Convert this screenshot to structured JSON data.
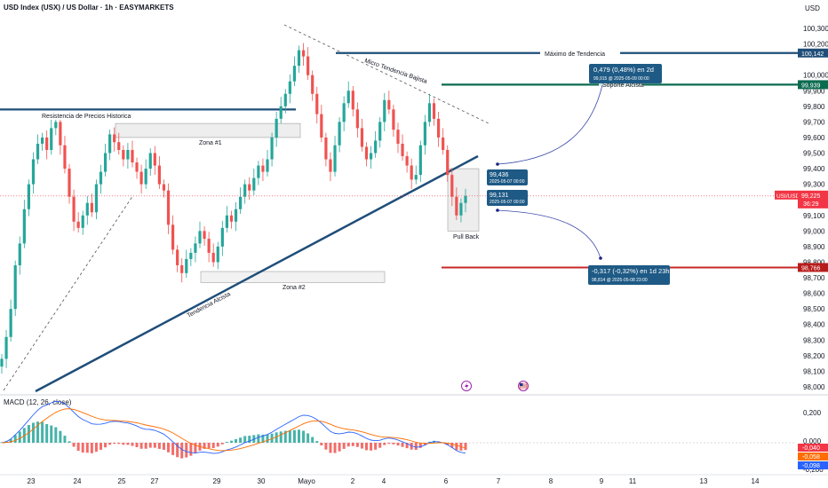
{
  "header": {
    "title": "USD Index (USX) / US Dollar · 1h · EASYMARKETS",
    "currency": "USD"
  },
  "chart_data": {
    "type": "candlestick",
    "price_axis": {
      "ticks": [
        "100,300",
        "100,200",
        "100,000",
        "99,900",
        "99,800",
        "99,700",
        "99,600",
        "99,500",
        "99,400",
        "99,300",
        "99,100",
        "99,000",
        "98,900",
        "98,800",
        "98,700",
        "98,600",
        "98,500",
        "98,400",
        "98,300",
        "98,200",
        "98,100",
        "98,000"
      ],
      "ylim": [
        97.98,
        100.34
      ]
    },
    "time_axis": {
      "ticks": [
        "23",
        "24",
        "25",
        "27",
        "29",
        "30",
        "Mayo",
        "2",
        "4",
        "6",
        "7",
        "8",
        "9",
        "11",
        "13",
        "14"
      ]
    },
    "price_tags": [
      {
        "label": "100,142",
        "value": 100.142,
        "color": "#1f4e79"
      },
      {
        "label": "99,939",
        "value": 99.939,
        "color": "#0b6b4f"
      },
      {
        "label": "USI/USD",
        "value": 99.225,
        "sub": "36:29",
        "price": "99,225",
        "color": "#f23645"
      },
      {
        "label": "98,766",
        "value": 98.766,
        "color": "#b71c1c"
      }
    ],
    "horizontal_lines": [
      {
        "label": "Máximo de Tendencia",
        "value": 100.142,
        "color": "#1f4e79"
      },
      {
        "label": "Soporte Alcista",
        "value": 99.939,
        "color": "#0b6b4f"
      },
      {
        "label": "",
        "value": 98.766,
        "color": "#c62828"
      },
      {
        "label": "Resistencia de Precios Historica",
        "value": 99.78,
        "color": "#1f4e79"
      }
    ],
    "trendlines": [
      {
        "label": "Tendencia Alcista",
        "from": [
          "Apr 22",
          97.98
        ],
        "to": [
          "May 6",
          99.48
        ],
        "color": "#1f4e79"
      },
      {
        "label": "Micro Tendencia Bajista",
        "from": [
          "Apr 30",
          100.37
        ],
        "to": [
          "May 6",
          99.72
        ],
        "dashed": true
      },
      {
        "label": "",
        "from": [
          "Apr 22",
          98.0
        ],
        "to": [
          "Apr 25",
          99.3
        ],
        "dashed": true
      }
    ],
    "zones": [
      {
        "label": "Zona #1",
        "top": 99.69,
        "bottom": 99.6
      },
      {
        "label": "Zona #2",
        "top": 98.74,
        "bottom": 98.67
      },
      {
        "label": "Pull Back",
        "top": 99.4,
        "bottom": 99.0
      }
    ],
    "annotations": [
      {
        "value": "99,436",
        "time": "2025-05-07 00:00"
      },
      {
        "value": "99,131",
        "time": "2025-05-07 00:00"
      },
      {
        "value": "0,479 (0,48%) en 2d",
        "detail": "99,915 @ 2025-05-09 00:00"
      },
      {
        "value": "-0,317 (-0,32%) en 1d 23h",
        "detail": "98,814 @ 2025-05-08 23:00"
      }
    ],
    "macd": {
      "title": "MACD (12, 26, close)",
      "ticks": [
        "0,200",
        "0,000",
        "-0,200"
      ],
      "tags": [
        {
          "label": "-0,040",
          "color": "#f23645"
        },
        {
          "label": "-0,058",
          "color": "#ff6d00"
        },
        {
          "label": "-0,098",
          "color": "#2962ff"
        }
      ]
    },
    "close": [
      98.18,
      98.32,
      98.5,
      98.78,
      98.92,
      99.14,
      99.3,
      99.46,
      99.56,
      99.6,
      99.52,
      99.66,
      99.7,
      99.55,
      99.4,
      99.22,
      99.06,
      99.02,
      99.1,
      99.18,
      99.12,
      99.3,
      99.38,
      99.5,
      99.62,
      99.57,
      99.52,
      99.46,
      99.52,
      99.44,
      99.38,
      99.3,
      99.4,
      99.5,
      99.42,
      99.3,
      99.26,
      99.04,
      98.88,
      98.78,
      98.73,
      98.82,
      98.86,
      98.92,
      99.0,
      98.95,
      98.86,
      98.8,
      98.9,
      99.02,
      99.1,
      99.06,
      99.14,
      99.22,
      99.3,
      99.26,
      99.34,
      99.42,
      99.38,
      99.46,
      99.6,
      99.72,
      99.8,
      99.88,
      99.96,
      100.06,
      100.16,
      100.12,
      100.0,
      99.88,
      99.75,
      99.6,
      99.46,
      99.38,
      99.55,
      99.7,
      99.82,
      99.9,
      99.78,
      99.66,
      99.54,
      99.46,
      99.5,
      99.58,
      99.7,
      99.84,
      99.78,
      99.65,
      99.56,
      99.48,
      99.42,
      99.33,
      99.36,
      99.55,
      99.7,
      99.82,
      99.72,
      99.6,
      99.52,
      99.36,
      99.22,
      99.1,
      99.18,
      99.225
    ]
  }
}
